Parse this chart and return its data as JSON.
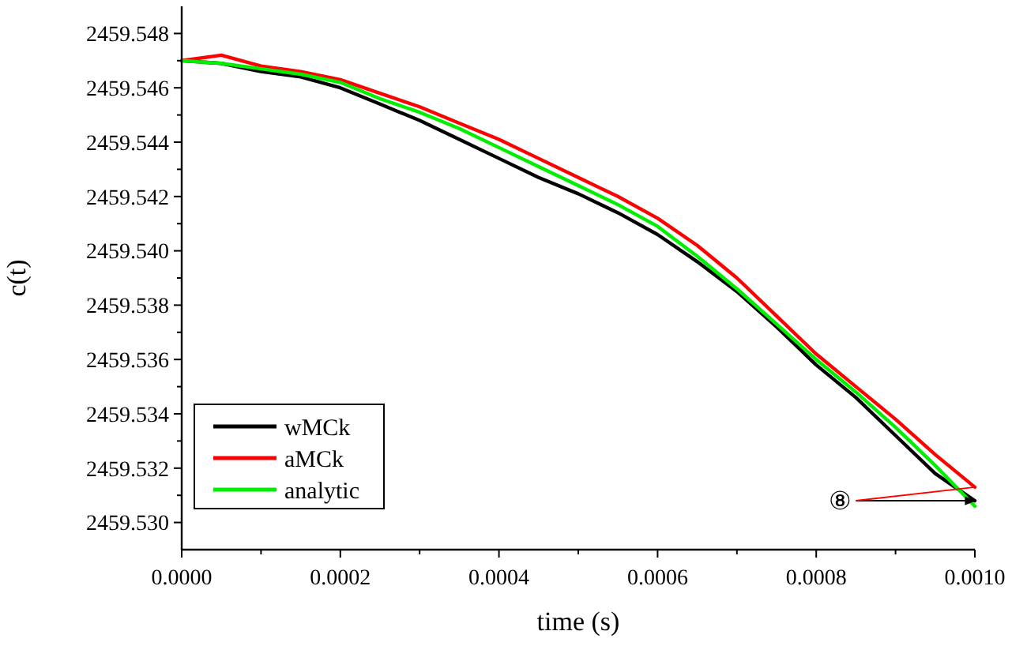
{
  "chart_data": {
    "type": "line",
    "xlabel": "time (s)",
    "ylabel": "c(t)",
    "x": [
      0,
      5e-05,
      0.0001,
      0.00015,
      0.0002,
      0.00025,
      0.0003,
      0.00035,
      0.0004,
      0.00045,
      0.0005,
      0.00055,
      0.0006,
      0.00065,
      0.0007,
      0.00075,
      0.0008,
      0.00085,
      0.0009,
      0.00095,
      0.001
    ],
    "series": [
      {
        "name": "wMCk",
        "color": "#000000",
        "values": [
          2459.547,
          2459.5469,
          2459.5466,
          2459.5464,
          2459.546,
          2459.5454,
          2459.5448,
          2459.5441,
          2459.5434,
          2459.5427,
          2459.5421,
          2459.5414,
          2459.5406,
          2459.5396,
          2459.5385,
          2459.5372,
          2459.5358,
          2459.5346,
          2459.5332,
          2459.5318,
          2459.5308
        ]
      },
      {
        "name": "aMCk",
        "color": "#ff0000",
        "values": [
          2459.547,
          2459.5472,
          2459.5468,
          2459.5466,
          2459.5463,
          2459.5458,
          2459.5453,
          2459.5447,
          2459.5441,
          2459.5434,
          2459.5427,
          2459.542,
          2459.5412,
          2459.5402,
          2459.539,
          2459.5376,
          2459.5362,
          2459.535,
          2459.5338,
          2459.5325,
          2459.5313
        ]
      },
      {
        "name": "analytic",
        "color": "#00ee00",
        "values": [
          2459.547,
          2459.5469,
          2459.5467,
          2459.5465,
          2459.5462,
          2459.5456,
          2459.5451,
          2459.5445,
          2459.5438,
          2459.5431,
          2459.5424,
          2459.5417,
          2459.5409,
          2459.5398,
          2459.5386,
          2459.5373,
          2459.536,
          2459.5348,
          2459.5335,
          2459.5321,
          2459.5306
        ]
      }
    ],
    "xlim": [
      0,
      0.001
    ],
    "xticks": [
      {
        "value": 0,
        "label": "0.0000"
      },
      {
        "value": 0.0001,
        "label": null
      },
      {
        "value": 0.0002,
        "label": "0.0002"
      },
      {
        "value": 0.0003,
        "label": null
      },
      {
        "value": 0.0004,
        "label": "0.0004"
      },
      {
        "value": 0.0005,
        "label": null
      },
      {
        "value": 0.0006,
        "label": "0.0006"
      },
      {
        "value": 0.0007,
        "label": null
      },
      {
        "value": 0.0008,
        "label": "0.0008"
      },
      {
        "value": 0.0009,
        "label": null
      },
      {
        "value": 0.001,
        "label": "0.0010"
      }
    ],
    "ylim": [
      2459.529,
      2459.549
    ],
    "yticks": [
      {
        "value": 2459.53,
        "label": "2459.530"
      },
      {
        "value": 2459.531,
        "label": null
      },
      {
        "value": 2459.532,
        "label": "2459.532"
      },
      {
        "value": 2459.533,
        "label": null
      },
      {
        "value": 2459.534,
        "label": "2459.534"
      },
      {
        "value": 2459.535,
        "label": null
      },
      {
        "value": 2459.536,
        "label": "2459.536"
      },
      {
        "value": 2459.537,
        "label": null
      },
      {
        "value": 2459.538,
        "label": "2459.538"
      },
      {
        "value": 2459.539,
        "label": null
      },
      {
        "value": 2459.54,
        "label": "2459.540"
      },
      {
        "value": 2459.541,
        "label": null
      },
      {
        "value": 2459.542,
        "label": "2459.542"
      },
      {
        "value": 2459.543,
        "label": null
      },
      {
        "value": 2459.544,
        "label": "2459.544"
      },
      {
        "value": 2459.545,
        "label": null
      },
      {
        "value": 2459.546,
        "label": "2459.546"
      },
      {
        "value": 2459.547,
        "label": null
      },
      {
        "value": 2459.548,
        "label": "2459.548"
      }
    ],
    "legend": "bottom left",
    "grid": false,
    "line_style": "solid",
    "annotations": [
      {
        "text": "⑧",
        "x": 0.001,
        "y": 2459.5308
      }
    ]
  }
}
